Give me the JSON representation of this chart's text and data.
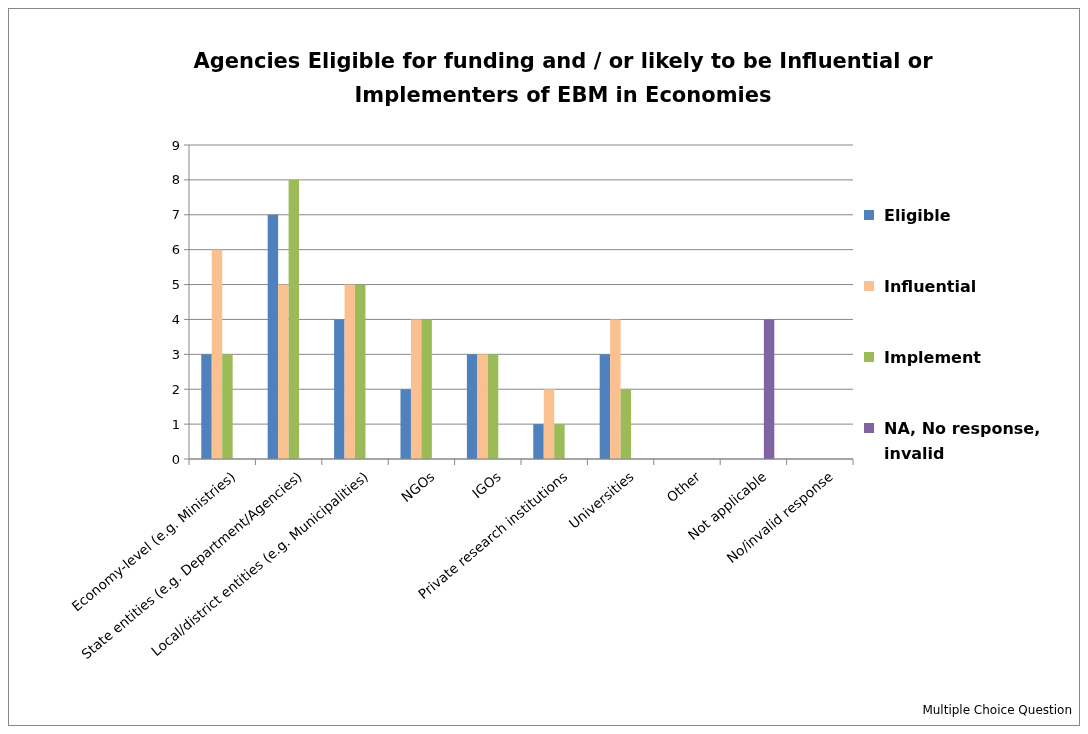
{
  "chart_data": {
    "type": "bar",
    "title": "Agencies Eligible for funding and / or likely to be Influential or Implementers of EBM in Economies",
    "categories": [
      "Economy-level (e.g. Ministries)",
      "State entities (e.g. Department/Agencies)",
      "Local/district entities (e.g. Municipalities)",
      "NGOs",
      "IGOs",
      "Private research institutions",
      "Universities",
      "Other",
      "Not applicable",
      "No/invalid response"
    ],
    "series": [
      {
        "name": "Eligible",
        "color": "#4f81bd",
        "values": [
          3,
          7,
          4,
          2,
          3,
          1,
          3,
          null,
          null,
          null
        ]
      },
      {
        "name": "Influential",
        "color": "#fac090",
        "values": [
          6,
          5,
          5,
          4,
          3,
          2,
          4,
          null,
          null,
          null
        ]
      },
      {
        "name": "Implement",
        "color": "#9bbb59",
        "values": [
          3,
          8,
          5,
          4,
          3,
          1,
          2,
          null,
          null,
          null
        ]
      },
      {
        "name": "NA, No response, invalid",
        "color": "#8064a2",
        "values": [
          null,
          null,
          null,
          null,
          null,
          null,
          null,
          null,
          4,
          null
        ]
      }
    ],
    "ylim": [
      0,
      9
    ],
    "yticks": [
      0,
      1,
      2,
      3,
      4,
      5,
      6,
      7,
      8,
      9
    ],
    "grid": "y",
    "legend": "right",
    "annotations": [
      "Multiple Choice Question"
    ]
  }
}
